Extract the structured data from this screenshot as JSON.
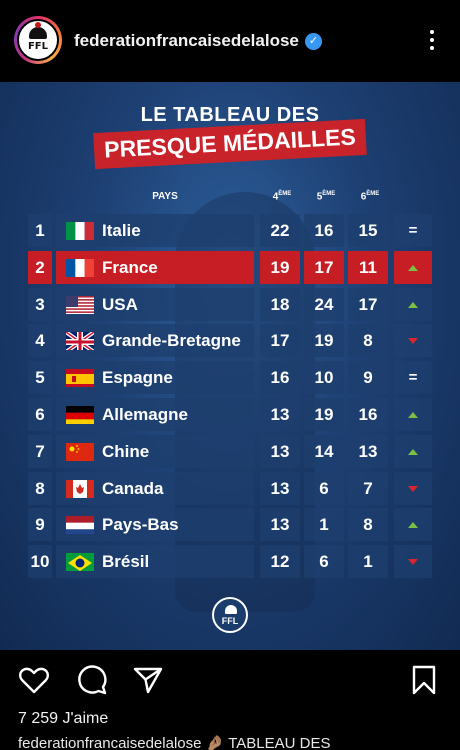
{
  "header": {
    "username": "federationfrancaisedelalose",
    "avatar_text": "FFL"
  },
  "post": {
    "title_line1": "LE TABLEAU DES",
    "title_line2": "PRESQUE MÉDAILLES",
    "columns": {
      "country": "PAYS",
      "fourth": "4",
      "fourth_sup": "ÈME",
      "fifth": "5",
      "fifth_sup": "ÈME",
      "sixth": "6",
      "sixth_sup": "ÈME"
    },
    "rows": [
      {
        "rank": "1",
        "country": "Italie",
        "v4": "22",
        "v5": "16",
        "v6": "15",
        "trend": "="
      },
      {
        "rank": "2",
        "country": "France",
        "v4": "19",
        "v5": "17",
        "v6": "11",
        "trend": "up"
      },
      {
        "rank": "3",
        "country": "USA",
        "v4": "18",
        "v5": "24",
        "v6": "17",
        "trend": "up"
      },
      {
        "rank": "4",
        "country": "Grande-Bretagne",
        "v4": "17",
        "v5": "19",
        "v6": "8",
        "trend": "down"
      },
      {
        "rank": "5",
        "country": "Espagne",
        "v4": "16",
        "v5": "10",
        "v6": "9",
        "trend": "="
      },
      {
        "rank": "6",
        "country": "Allemagne",
        "v4": "13",
        "v5": "19",
        "v6": "16",
        "trend": "up"
      },
      {
        "rank": "7",
        "country": "Chine",
        "v4": "13",
        "v5": "14",
        "v6": "13",
        "trend": "up"
      },
      {
        "rank": "8",
        "country": "Canada",
        "v4": "13",
        "v5": "6",
        "v6": "7",
        "trend": "down"
      },
      {
        "rank": "9",
        "country": "Pays-Bas",
        "v4": "13",
        "v5": "1",
        "v6": "8",
        "trend": "up"
      },
      {
        "rank": "10",
        "country": "Brésil",
        "v4": "12",
        "v5": "6",
        "v6": "1",
        "trend": "down"
      }
    ],
    "bottom_logo_text": "FFL"
  },
  "actions": {
    "likes": "7 259 J'aime",
    "caption": "federationfrancaisedelalose 🤌🏽 TABLEAU DES"
  },
  "colors": {
    "highlight": "#c61e24",
    "up": "#7bc043",
    "down": "#d8262e",
    "verified": "#3897f0"
  }
}
